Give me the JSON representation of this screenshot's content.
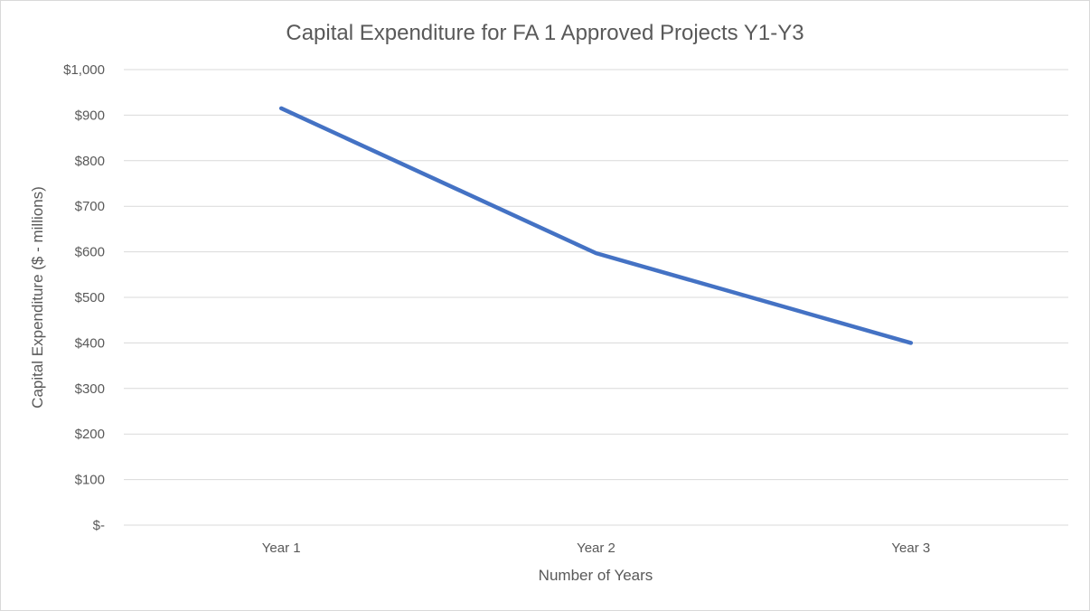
{
  "chart_data": {
    "type": "line",
    "title": "Capital Expenditure for FA 1 Approved Projects Y1-Y3",
    "xlabel": "Number of Years",
    "ylabel": "Capital Expenditure ($ - millions)",
    "categories": [
      "Year 1",
      "Year 2",
      "Year 3"
    ],
    "series": [
      {
        "values": [
          915,
          597,
          400
        ],
        "color": "#4472c4"
      }
    ],
    "ylim": [
      0,
      1000
    ],
    "yticks": [
      0,
      100,
      200,
      300,
      400,
      500,
      600,
      700,
      800,
      900,
      1000
    ],
    "ytick_labels": [
      "$-",
      "$100",
      "$200",
      "$300",
      "$400",
      "$500",
      "$600",
      "$700",
      "$800",
      "$900",
      "$1,000"
    ],
    "grid": true,
    "legend": "none"
  }
}
